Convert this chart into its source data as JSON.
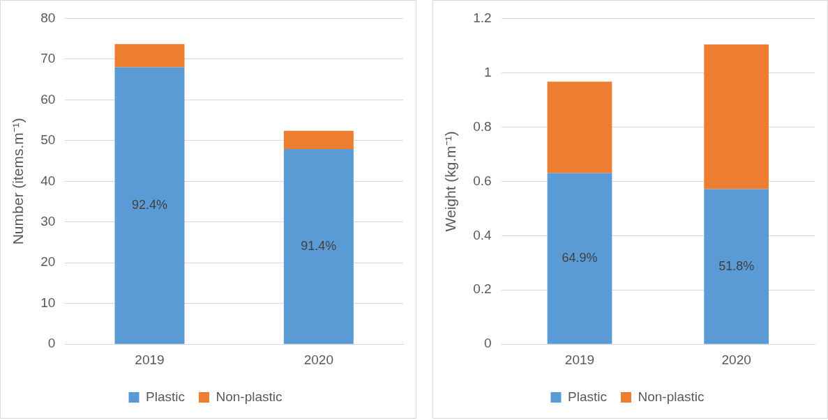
{
  "chart_data": [
    {
      "type": "bar",
      "ylabel": "Number (items.m⁻¹)",
      "categories": [
        "2019",
        "2020"
      ],
      "stacked": true,
      "ylim": [
        0,
        80
      ],
      "yticks": [
        0,
        10,
        20,
        30,
        40,
        50,
        60,
        70,
        80
      ],
      "grid": "y",
      "legend": "bottom",
      "annotations": [
        "92.4%",
        "91.4%"
      ],
      "series": [
        {
          "name": "Plastic",
          "color": "#5b9bd5",
          "values": [
            68.0,
            47.9
          ]
        },
        {
          "name": "Non-plastic",
          "color": "#ed7d31",
          "values": [
            5.7,
            4.5
          ]
        }
      ]
    },
    {
      "type": "bar",
      "ylabel": "Weight (kg.m⁻¹)",
      "categories": [
        "2019",
        "2020"
      ],
      "stacked": true,
      "ylim": [
        0,
        1.2
      ],
      "yticks": [
        0,
        0.2,
        0.4,
        0.6,
        0.8,
        1,
        1.2
      ],
      "grid": "y",
      "legend": "bottom",
      "annotations": [
        "64.9%",
        "51.8%"
      ],
      "series": [
        {
          "name": "Plastic",
          "color": "#5b9bd5",
          "values": [
            0.63,
            0.571
          ]
        },
        {
          "name": "Non-plastic",
          "color": "#ed7d31",
          "values": [
            0.337,
            0.533
          ]
        }
      ]
    }
  ]
}
